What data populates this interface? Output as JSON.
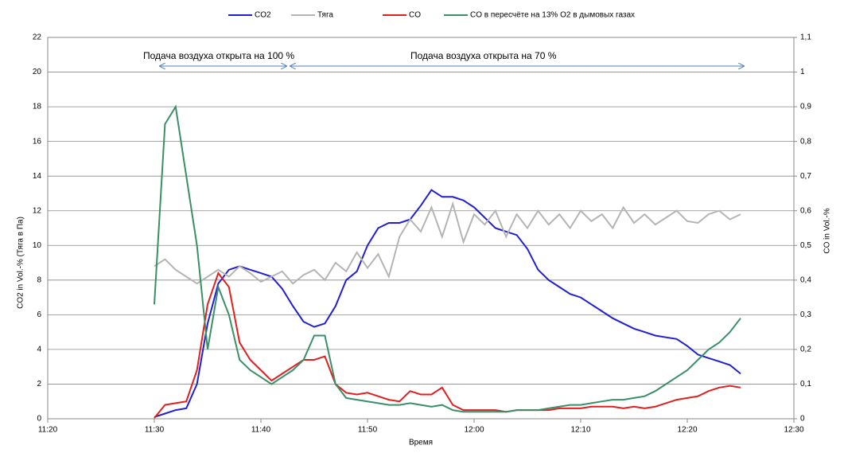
{
  "chart_data": {
    "type": "line",
    "x_label": "Время",
    "y_label": "CO2  in Vol.-%  (Тяга в Па)",
    "y2_label": "CO in Vol.-%",
    "annotations": [
      "Подача воздуха открыта на  100 %",
      "Подача воздуха открыта на  70 %"
    ],
    "grid": true,
    "legend": "top",
    "x": [
      690,
      691,
      692,
      693,
      694,
      695,
      696,
      697,
      698,
      699,
      700,
      701,
      702,
      703,
      704,
      705,
      706,
      707,
      708,
      709,
      710,
      711,
      712,
      713,
      714,
      715,
      716,
      717,
      718,
      719,
      720,
      721,
      722,
      723,
      724,
      725,
      726,
      727,
      728,
      729,
      730,
      731,
      732,
      733,
      734,
      735,
      736,
      737,
      738,
      739,
      740,
      741,
      742,
      743,
      744,
      745
    ],
    "xlim": [
      680,
      750
    ],
    "xticks": [
      {
        "value": 680,
        "label": "11:20"
      },
      {
        "value": 690,
        "label": "11:30"
      },
      {
        "value": 700,
        "label": "11:40"
      },
      {
        "value": 710,
        "label": "11:50"
      },
      {
        "value": 720,
        "label": "12:00"
      },
      {
        "value": 730,
        "label": "12:10"
      },
      {
        "value": 740,
        "label": "12:20"
      },
      {
        "value": 750,
        "label": "12:30"
      }
    ],
    "ylim": [
      0,
      22
    ],
    "yticks": [
      0,
      2,
      4,
      6,
      8,
      10,
      12,
      14,
      16,
      18,
      20,
      22
    ],
    "y2lim": [
      0,
      1.1
    ],
    "y2ticks": [
      0,
      {
        "value": 0.1,
        "label": "0,1"
      },
      {
        "value": 0.2,
        "label": "0,2"
      },
      {
        "value": 0.3,
        "label": "0,3"
      },
      {
        "value": 0.4,
        "label": "0,4"
      },
      {
        "value": 0.5,
        "label": "0,5"
      },
      {
        "value": 0.6,
        "label": "0,6"
      },
      {
        "value": 0.7,
        "label": "0,7"
      },
      {
        "value": 0.8,
        "label": "0,8"
      },
      {
        "value": 0.9,
        "label": "0,9"
      },
      1,
      {
        "value": 1.1,
        "label": "1,1"
      }
    ],
    "series": [
      {
        "name": "CO2",
        "color": "#1f1fd6",
        "values": [
          0.1,
          0.3,
          0.5,
          0.6,
          2,
          5.5,
          7.8,
          8.6,
          8.8,
          8.6,
          8.4,
          8.2,
          7.5,
          6.5,
          5.6,
          5.3,
          5.5,
          6.5,
          8,
          8.5,
          10,
          11,
          11.3,
          11.3,
          11.5,
          12.3,
          13.2,
          12.8,
          12.8,
          12.6,
          12.2,
          11.6,
          11,
          10.8,
          10.6,
          9.8,
          8.6,
          8,
          7.6,
          7.2,
          7,
          6.6,
          6.2,
          5.8,
          5.5,
          5.2,
          5,
          4.8,
          4.7,
          4.6,
          4.2,
          3.7,
          3.5,
          3.3,
          3.1,
          2.6
        ]
      },
      {
        "name": "Тяга",
        "color": "#b4b4b4",
        "values": [
          8.8,
          9.2,
          8.6,
          8.2,
          7.8,
          8.2,
          8.6,
          8.2,
          8.8,
          8.4,
          7.9,
          8.2,
          8.5,
          7.8,
          8.3,
          8.6,
          8.0,
          9.0,
          8.5,
          9.6,
          8.7,
          9.5,
          8.2,
          10.5,
          11.5,
          10.8,
          12.2,
          10.5,
          12.4,
          10.2,
          11.8,
          11.2,
          12,
          10.5,
          11.8,
          11,
          12,
          11.2,
          11.8,
          11,
          12,
          11.4,
          11.8,
          11,
          12.2,
          11.3,
          11.8,
          11.2,
          11.6,
          12,
          11.4,
          11.3,
          11.8,
          12,
          11.5,
          11.8
        ]
      },
      {
        "name": "CO",
        "color": "#e02020",
        "axis": "y2",
        "values": [
          0.002,
          0.04,
          0.045,
          0.05,
          0.14,
          0.33,
          0.42,
          0.38,
          0.22,
          0.17,
          0.14,
          0.11,
          0.13,
          0.15,
          0.17,
          0.17,
          0.18,
          0.1,
          0.075,
          0.07,
          0.075,
          0.065,
          0.055,
          0.05,
          0.08,
          0.07,
          0.07,
          0.09,
          0.04,
          0.025,
          0.025,
          0.025,
          0.025,
          0.02,
          0.025,
          0.025,
          0.025,
          0.025,
          0.03,
          0.03,
          0.03,
          0.035,
          0.035,
          0.035,
          0.03,
          0.035,
          0.03,
          0.035,
          0.045,
          0.055,
          0.06,
          0.065,
          0.08,
          0.09,
          0.095,
          0.09
        ]
      },
      {
        "name": "CO в пересчёте на 13% O2 в дымовых газах",
        "color": "#3a8f68",
        "axis": "y2",
        "values": [
          0.33,
          0.85,
          0.9,
          0.7,
          0.5,
          0.2,
          0.38,
          0.3,
          0.17,
          0.14,
          0.12,
          0.1,
          0.12,
          0.14,
          0.17,
          0.24,
          0.24,
          0.1,
          0.06,
          0.055,
          0.05,
          0.045,
          0.04,
          0.04,
          0.045,
          0.04,
          0.035,
          0.04,
          0.025,
          0.02,
          0.02,
          0.02,
          0.02,
          0.02,
          0.025,
          0.025,
          0.025,
          0.03,
          0.035,
          0.04,
          0.04,
          0.045,
          0.05,
          0.055,
          0.055,
          0.06,
          0.065,
          0.08,
          0.1,
          0.12,
          0.14,
          0.17,
          0.2,
          0.22,
          0.25,
          0.29
        ]
      }
    ]
  }
}
